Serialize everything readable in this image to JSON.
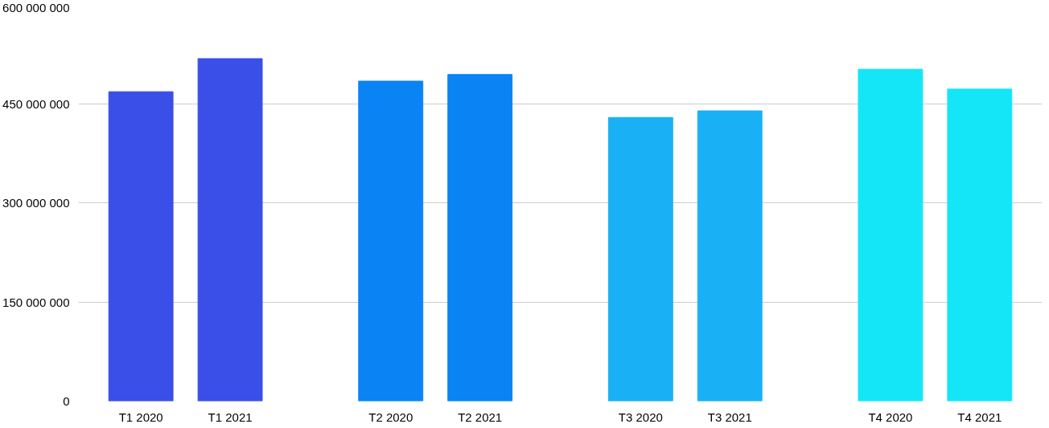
{
  "chart_data": {
    "type": "bar",
    "categories": [
      "T1 2020",
      "T1 2021",
      "T2 2020",
      "T2 2021",
      "T3 2020",
      "T3 2021",
      "T4 2020",
      "T4 2021"
    ],
    "values": [
      468000000,
      518000000,
      484000000,
      494000000,
      429000000,
      439000000,
      502000000,
      472000000
    ],
    "colors": [
      "#3a4fe8",
      "#3a4fe8",
      "#0a84f5",
      "#0a84f5",
      "#1ab0f5",
      "#1ab0f5",
      "#14e6f8",
      "#14e6f8"
    ],
    "ylim": [
      0,
      600000000
    ],
    "yticks": [
      {
        "value": 0,
        "label": "0"
      },
      {
        "value": 150000000,
        "label": "150 000 000"
      },
      {
        "value": 300000000,
        "label": "300 000 000"
      },
      {
        "value": 450000000,
        "label": "450 000 000"
      },
      {
        "value": 600000000,
        "label": "600 000 000"
      }
    ],
    "grid": "y"
  }
}
